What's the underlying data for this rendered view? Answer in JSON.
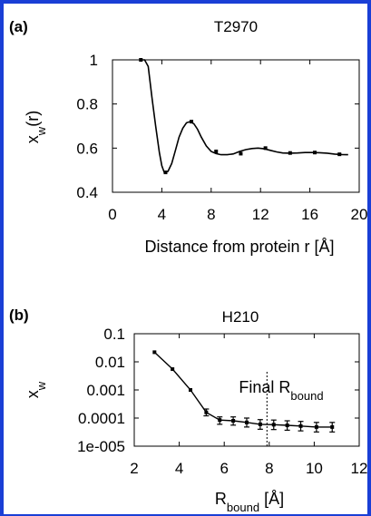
{
  "figure": {
    "border_color": "#1a3fd6",
    "line_color": "#000000"
  },
  "chart_data": [
    {
      "panel_label": "(a)",
      "type": "line",
      "title": "T2970",
      "xlabel": "Distance from protein r [Å]",
      "ylabel": "x_w(r)",
      "ylabel_base": "x",
      "ylabel_sub": "w",
      "ylabel_suffix": "(r)",
      "xlim": [
        0,
        20
      ],
      "ylim": [
        0.4,
        1.0
      ],
      "xticks": [
        0,
        4,
        8,
        12,
        16,
        20
      ],
      "xtick_labels": [
        "0",
        "4",
        "8",
        "12",
        "16",
        "20"
      ],
      "yticks": [
        0.4,
        0.6,
        0.8,
        1.0
      ],
      "ytick_labels": [
        "0.4",
        "0.6",
        "0.8",
        "1"
      ],
      "grid": false,
      "line": {
        "x": [
          2.3,
          2.6,
          2.9,
          3.2,
          3.5,
          3.8,
          4.0,
          4.2,
          4.5,
          4.8,
          5.1,
          5.4,
          5.7,
          6.0,
          6.3,
          6.6,
          6.9,
          7.2,
          7.6,
          8.0,
          8.4,
          8.8,
          9.3,
          9.8,
          10.3,
          10.8,
          11.3,
          11.8,
          12.3,
          12.8,
          13.3,
          13.8,
          14.4,
          15.0,
          15.6,
          16.2,
          16.8,
          17.4,
          18.0,
          18.6,
          19.1
        ],
        "y": [
          1.0,
          1.0,
          0.97,
          0.83,
          0.7,
          0.58,
          0.52,
          0.49,
          0.495,
          0.53,
          0.59,
          0.65,
          0.69,
          0.715,
          0.72,
          0.71,
          0.685,
          0.65,
          0.61,
          0.585,
          0.575,
          0.57,
          0.57,
          0.574,
          0.585,
          0.593,
          0.598,
          0.6,
          0.597,
          0.59,
          0.583,
          0.578,
          0.577,
          0.578,
          0.58,
          0.58,
          0.579,
          0.577,
          0.573,
          0.571,
          0.57
        ]
      },
      "points": {
        "x": [
          2.3,
          4.3,
          6.4,
          8.4,
          10.4,
          12.4,
          14.4,
          16.4,
          18.4
        ],
        "y": [
          1.0,
          0.49,
          0.72,
          0.585,
          0.575,
          0.6,
          0.578,
          0.58,
          0.572
        ]
      }
    },
    {
      "panel_label": "(b)",
      "type": "line",
      "title": "H210",
      "xlabel": "R_bound [Å]",
      "xlabel_base": "R",
      "xlabel_sub": "bound",
      "xlabel_suffix": " [Å]",
      "ylabel": "x_w",
      "ylabel_base": "x",
      "ylabel_sub": "w",
      "xlim": [
        2,
        12
      ],
      "ylim": [
        1e-05,
        0.1
      ],
      "yscale": "log",
      "xticks": [
        2,
        4,
        6,
        8,
        10,
        12
      ],
      "xtick_labels": [
        "2",
        "4",
        "6",
        "8",
        "10",
        "12"
      ],
      "yticks": [
        1e-05,
        0.0001,
        0.001,
        0.01,
        0.1
      ],
      "ytick_labels": [
        "1e-005",
        "0.0001",
        "0.001",
        "0.01",
        "0.1"
      ],
      "grid": false,
      "annotation": {
        "text": "Final R_bound",
        "text_base": "Final R",
        "text_sub": "bound",
        "x": 7.9
      },
      "points": {
        "x": [
          2.9,
          3.7,
          4.5,
          5.2,
          5.8,
          6.4,
          7.0,
          7.6,
          8.2,
          8.8,
          9.4,
          10.1,
          10.8
        ],
        "y": [
          0.022,
          0.0055,
          0.001,
          0.00016,
          8.5e-05,
          8e-05,
          7e-05,
          6e-05,
          5.8e-05,
          5.5e-05,
          5.2e-05,
          4.8e-05,
          4.8e-05
        ],
        "err_low": [
          0.022,
          0.0055,
          0.001,
          0.00012,
          6e-05,
          5.6e-05,
          4.8e-05,
          4e-05,
          3.9e-05,
          3.7e-05,
          3.5e-05,
          3.2e-05,
          3.2e-05
        ],
        "err_high": [
          0.022,
          0.0055,
          0.001,
          0.00021,
          0.00011,
          0.00011,
          0.0001,
          8.8e-05,
          8.5e-05,
          8e-05,
          7.6e-05,
          7e-05,
          7e-05
        ]
      }
    }
  ]
}
